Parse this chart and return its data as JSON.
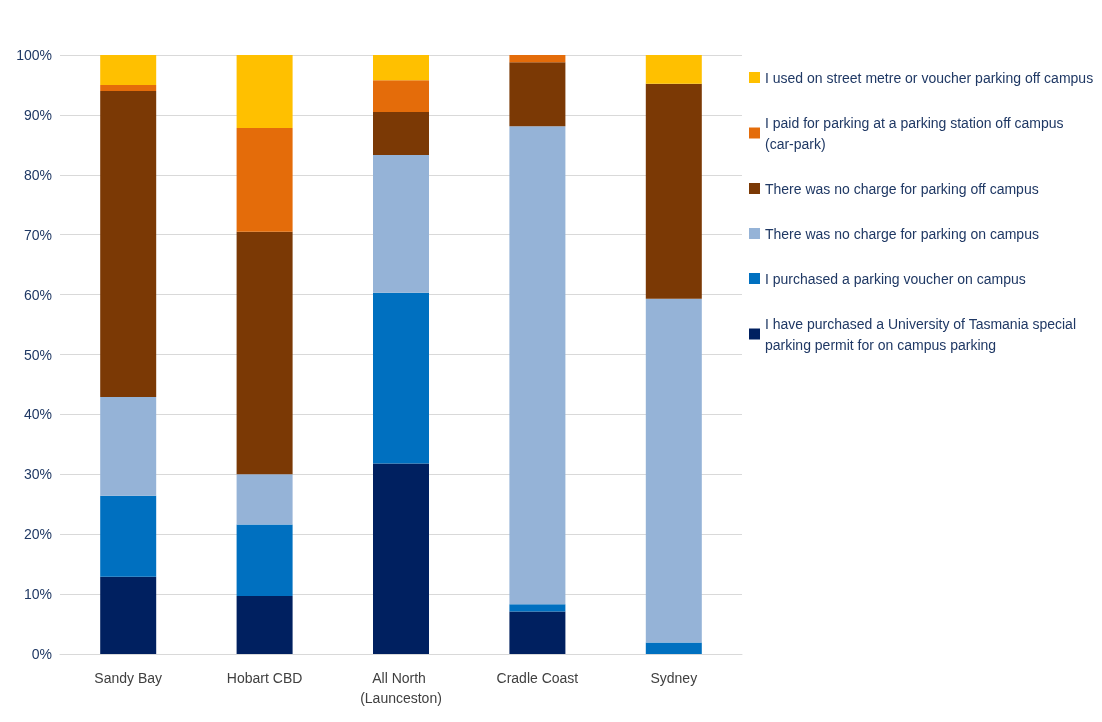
{
  "chart_data": {
    "type": "bar",
    "stacked": true,
    "categories": [
      "Sandy Bay",
      "Hobart CBD",
      "All North (Launceston)",
      "Cradle Coast",
      "Sydney"
    ],
    "series": [
      {
        "name": "I have purchased a University of Tasmania special parking permit for on campus parking",
        "color": "#002060",
        "values": [
          12.9,
          9.7,
          31.8,
          7.1,
          0
        ]
      },
      {
        "name": "I purchased a parking voucher on campus",
        "color": "#0070c0",
        "values": [
          13.5,
          11.9,
          28.5,
          1.2,
          1.9
        ]
      },
      {
        "name": "There was no charge for parking on campus",
        "color": "#95b3d7",
        "values": [
          16.5,
          8.4,
          23.0,
          79.8,
          57.4
        ]
      },
      {
        "name": "There was no charge for parking off campus",
        "color": "#7b3905",
        "values": [
          51.1,
          40.5,
          7.2,
          10.7,
          35.9
        ]
      },
      {
        "name": "I paid for parking at a parking station off campus (car-park)",
        "color": "#e46c0a",
        "values": [
          1.0,
          17.3,
          5.3,
          1.2,
          0
        ]
      },
      {
        "name": "I used on street metre or voucher parking off campus",
        "color": "#ffc000",
        "values": [
          5.0,
          12.2,
          4.2,
          0,
          4.8
        ]
      }
    ],
    "ylim": [
      0,
      100
    ],
    "yticks": [
      {
        "value": 0,
        "label": "0%"
      },
      {
        "value": 10,
        "label": "10%"
      },
      {
        "value": 20,
        "label": "20%"
      },
      {
        "value": 30,
        "label": "30%"
      },
      {
        "value": 40,
        "label": "40%"
      },
      {
        "value": 50,
        "label": "50%"
      },
      {
        "value": 60,
        "label": "60%"
      },
      {
        "value": 70,
        "label": "70%"
      },
      {
        "value": 80,
        "label": "80%"
      },
      {
        "value": 90,
        "label": "90%"
      },
      {
        "value": 100,
        "label": "100%"
      }
    ],
    "grid": "y",
    "legend": "right"
  }
}
